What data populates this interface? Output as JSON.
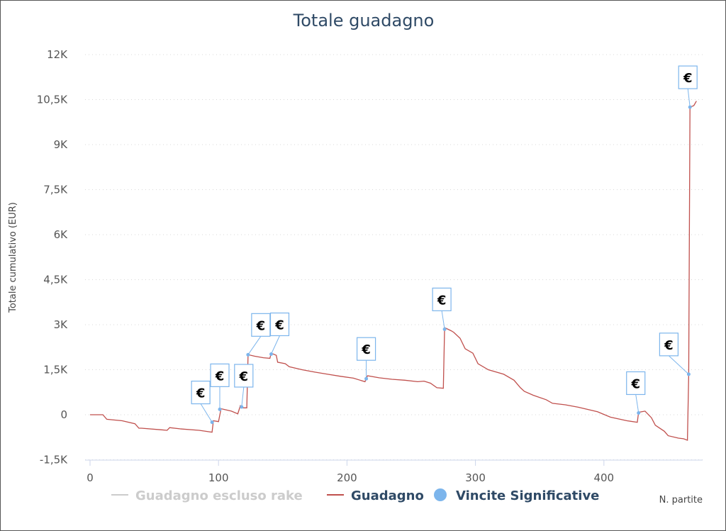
{
  "chart_data": {
    "type": "line",
    "title": "Totale guadagno",
    "ylabel": "Totale cumulativo (EUR)",
    "xlabel": "N. partite",
    "xlim": [
      0,
      475
    ],
    "ylim": [
      -1500,
      12000
    ],
    "x_ticks": [
      0,
      100,
      200,
      300,
      400
    ],
    "x_tick_labels": [
      "0",
      "100",
      "200",
      "300",
      "400"
    ],
    "y_ticks": [
      -1500,
      0,
      1500,
      3000,
      4500,
      6000,
      7500,
      9000,
      10500,
      12000
    ],
    "y_tick_labels": [
      "-1,5K",
      "0",
      "1,5K",
      "3K",
      "4,5K",
      "6K",
      "7,5K",
      "9K",
      "10,5K",
      "12K"
    ],
    "grid": true,
    "legend_position": "bottom",
    "colors": {
      "guadagno": "#c0504d",
      "escluso_rake": "#cccccc",
      "vincite": "#7cb5ec",
      "title": "#2f4a66"
    },
    "legend": [
      {
        "name": "Guadagno escluso rake",
        "kind": "line",
        "color": "#cccccc",
        "text_color": "#cccccc"
      },
      {
        "name": "Guadagno",
        "kind": "line",
        "color": "#c0504d",
        "text_color": "#2f4a66"
      },
      {
        "name": "Vincite Significative",
        "kind": "dot",
        "color": "#7cb5ec",
        "text_color": "#2f4a66"
      }
    ],
    "series": [
      {
        "name": "Guadagno",
        "points": [
          [
            0,
            0
          ],
          [
            10,
            0
          ],
          [
            13,
            -150
          ],
          [
            25,
            -200
          ],
          [
            35,
            -300
          ],
          [
            38,
            -450
          ],
          [
            40,
            -450
          ],
          [
            55,
            -500
          ],
          [
            60,
            -520
          ],
          [
            62,
            -430
          ],
          [
            70,
            -470
          ],
          [
            85,
            -520
          ],
          [
            95,
            -580
          ],
          [
            96,
            -200
          ],
          [
            100,
            -230
          ],
          [
            102,
            200
          ],
          [
            110,
            120
          ],
          [
            115,
            30
          ],
          [
            117,
            300
          ],
          [
            119,
            230
          ],
          [
            122,
            230
          ],
          [
            123,
            2000
          ],
          [
            128,
            1950
          ],
          [
            135,
            1900
          ],
          [
            140,
            1880
          ],
          [
            141,
            2050
          ],
          [
            145,
            1980
          ],
          [
            146,
            1750
          ],
          [
            152,
            1700
          ],
          [
            155,
            1600
          ],
          [
            165,
            1500
          ],
          [
            175,
            1420
          ],
          [
            185,
            1350
          ],
          [
            195,
            1280
          ],
          [
            205,
            1220
          ],
          [
            214,
            1100
          ],
          [
            216,
            1300
          ],
          [
            225,
            1230
          ],
          [
            235,
            1180
          ],
          [
            245,
            1150
          ],
          [
            255,
            1100
          ],
          [
            260,
            1120
          ],
          [
            265,
            1050
          ],
          [
            270,
            900
          ],
          [
            275,
            880
          ],
          [
            276,
            2900
          ],
          [
            281,
            2800
          ],
          [
            283,
            2750
          ],
          [
            288,
            2550
          ],
          [
            292,
            2200
          ],
          [
            298,
            2050
          ],
          [
            302,
            1700
          ],
          [
            310,
            1500
          ],
          [
            322,
            1350
          ],
          [
            330,
            1150
          ],
          [
            335,
            900
          ],
          [
            338,
            780
          ],
          [
            345,
            650
          ],
          [
            355,
            500
          ],
          [
            360,
            380
          ],
          [
            370,
            330
          ],
          [
            380,
            250
          ],
          [
            395,
            100
          ],
          [
            405,
            -80
          ],
          [
            418,
            -200
          ],
          [
            426,
            -250
          ],
          [
            427,
            80
          ],
          [
            432,
            120
          ],
          [
            437,
            -100
          ],
          [
            440,
            -350
          ],
          [
            447,
            -550
          ],
          [
            450,
            -700
          ],
          [
            458,
            -780
          ],
          [
            462,
            -800
          ],
          [
            465,
            -850
          ],
          [
            466,
            1350
          ],
          [
            467,
            10250
          ],
          [
            470,
            10300
          ],
          [
            472,
            10450
          ]
        ]
      }
    ],
    "markers": [
      {
        "name": "Vincite Significative",
        "x": 95,
        "y": -250,
        "label": "€"
      },
      {
        "name": "Vincite Significative",
        "x": 101,
        "y": 180,
        "label": "€"
      },
      {
        "name": "Vincite Significative",
        "x": 118,
        "y": 260,
        "label": "€"
      },
      {
        "name": "Vincite Significative",
        "x": 123,
        "y": 2000,
        "label": "€"
      },
      {
        "name": "Vincite Significative",
        "x": 141,
        "y": 2020,
        "label": "€"
      },
      {
        "name": "Vincite Significative",
        "x": 215,
        "y": 1200,
        "label": "€"
      },
      {
        "name": "Vincite Significative",
        "x": 276,
        "y": 2850,
        "label": "€"
      },
      {
        "name": "Vincite Significative",
        "x": 427,
        "y": 60,
        "label": "€"
      },
      {
        "name": "Vincite Significative",
        "x": 466,
        "y": 1350,
        "label": "€"
      },
      {
        "name": "Vincite Significative",
        "x": 467,
        "y": 10250,
        "label": "€"
      }
    ]
  }
}
